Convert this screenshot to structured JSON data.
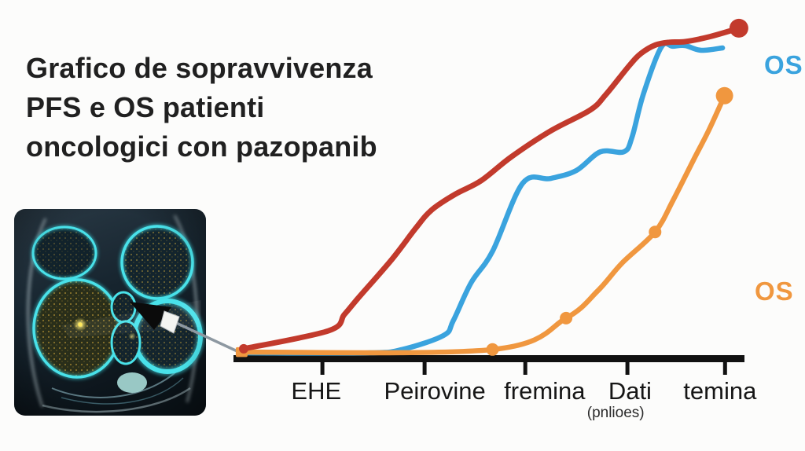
{
  "title": {
    "lines": [
      "Grafico de sopravvivenza",
      "PFS e OS patienti",
      "oncologici con pazopanib"
    ]
  },
  "colors": {
    "background": "#fcfcfb",
    "axis": "#111111",
    "title_text": "#202020",
    "tick_label_text": "#161616",
    "red_line": "#c23a2c",
    "blue_line": "#3aa3de",
    "orange_line": "#f0973f",
    "pointer_gray": "#8d98a1",
    "scan_cyan": "#3fd9e3",
    "scan_yellow": "#d4af3a"
  },
  "chart_data": {
    "type": "line",
    "title": "Grafico de sopravvivenza PFS e OS patienti oncologici con pazopanib",
    "xlabel": "",
    "ylabel": "",
    "ylim": [
      0,
      100
    ],
    "grid": false,
    "legend_position": "none",
    "x_ticks": {
      "positions_pct": [
        17.4,
        37.4,
        57.1,
        77.1,
        96.2
      ],
      "labels": [
        {
          "text": "EHE",
          "x_pct": 16.2
        },
        {
          "text": "Peirovine",
          "x_pct": 39.4
        },
        {
          "text": "fremina",
          "x_pct": 60.9
        },
        {
          "text": "Dati",
          "x_pct": 77.6,
          "sub": "(pnlioes)",
          "sub_x_pct": 74.8
        },
        {
          "text": "temina",
          "x_pct": 95.2
        }
      ]
    },
    "series": [
      {
        "name": "OS (blue)",
        "color": "#3aa3de",
        "width": 6.5,
        "points": [
          [
            2.8,
            1.4
          ],
          [
            26.4,
            1.4
          ],
          [
            33,
            2.4
          ],
          [
            41.1,
            6.6
          ],
          [
            43,
            11
          ],
          [
            46.5,
            22.4
          ],
          [
            50.7,
            31.8
          ],
          [
            56.6,
            52.2
          ],
          [
            62,
            53.6
          ],
          [
            67.1,
            56
          ],
          [
            71.8,
            61.6
          ],
          [
            76.4,
            61.6
          ],
          [
            78,
            66
          ],
          [
            80.2,
            78.8
          ],
          [
            83.7,
            92.9
          ],
          [
            86,
            93.2
          ],
          [
            88.4,
            93.4
          ],
          [
            91.5,
            92
          ],
          [
            95.7,
            92.7
          ]
        ],
        "markers": {}
      },
      {
        "name": "OS (orange)",
        "color": "#f0973f",
        "width": 6.5,
        "points": [
          [
            1.6,
            1.6
          ],
          [
            50.7,
            2.4
          ],
          [
            65.1,
            11.8
          ],
          [
            71.3,
            20
          ],
          [
            76,
            28.2
          ],
          [
            82.5,
            37.6
          ],
          [
            86,
            47
          ],
          [
            89.9,
            58.8
          ],
          [
            93,
            68
          ],
          [
            96.1,
            78.4
          ]
        ],
        "markers": {
          "start_square": 15,
          "dot_indices": [
            1,
            2,
            5
          ],
          "dot_radius": 8,
          "end_dot": 11
        }
      },
      {
        "name": "PFS (red)",
        "color": "#c23a2c",
        "width": 7,
        "points": [
          [
            2,
            2.6
          ],
          [
            18.6,
            8
          ],
          [
            21.7,
            12.9
          ],
          [
            24.3,
            17.6
          ],
          [
            31,
            29.4
          ],
          [
            35.7,
            38.8
          ],
          [
            38.8,
            44.2
          ],
          [
            43.4,
            48.9
          ],
          [
            48.4,
            52.9
          ],
          [
            54.3,
            60
          ],
          [
            62,
            67.8
          ],
          [
            69.8,
            74.1
          ],
          [
            72.9,
            78.8
          ],
          [
            77.5,
            87.5
          ],
          [
            79.8,
            91.1
          ],
          [
            82.6,
            93.6
          ],
          [
            85.3,
            94.4
          ],
          [
            88.4,
            94.6
          ],
          [
            93,
            96
          ],
          [
            98.9,
            98.6
          ]
        ],
        "markers": {
          "start_dot": 6,
          "end_dot": 12
        }
      }
    ],
    "annotations": [
      {
        "text": "OS",
        "color": "#3aa3de",
        "position": "right-top"
      },
      {
        "text": "OS",
        "color": "#f0973f",
        "position": "right-middle"
      }
    ]
  }
}
